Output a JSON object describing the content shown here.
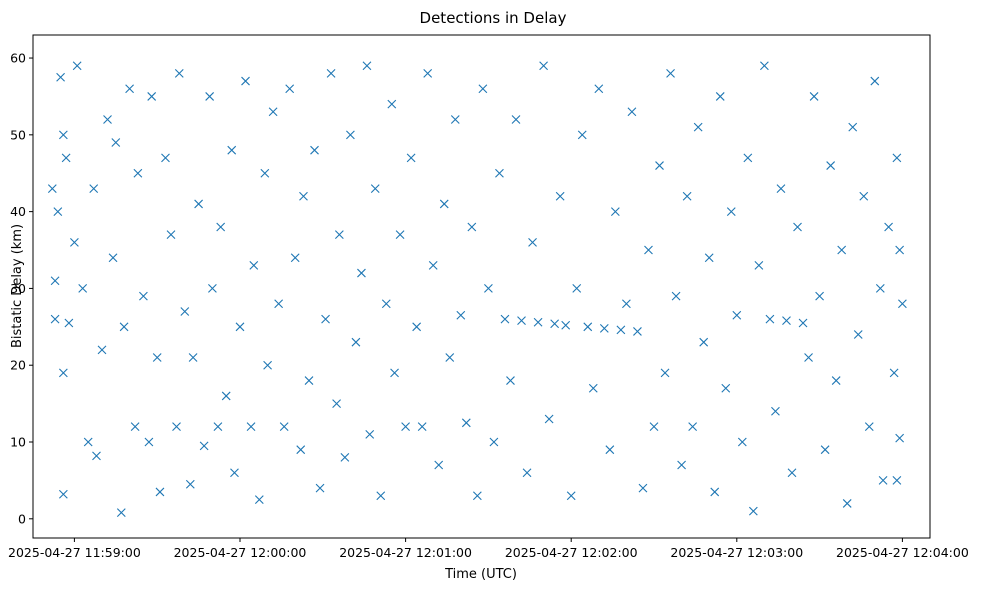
{
  "chart_data": {
    "type": "scatter",
    "title": "Detections in Delay",
    "xlabel": "Time (UTC)",
    "ylabel": "Bistatic Delay (km)",
    "x_ticks": [
      "2025-04-27 11:59:00",
      "2025-04-27 12:00:00",
      "2025-04-27 12:01:00",
      "2025-04-27 12:02:00",
      "2025-04-27 12:03:00",
      "2025-04-27 12:04:00"
    ],
    "y_ticks": [
      "0",
      "10",
      "20",
      "30",
      "40",
      "50",
      "60"
    ],
    "xlim": [
      "2025-04-27 11:58:45",
      "2025-04-27 12:04:10"
    ],
    "ylim": [
      -2.5,
      63
    ],
    "marker": "x",
    "color": "#1f77b4",
    "grid": false,
    "legend": "none",
    "series": [
      {
        "points": [
          [
            "11:58:52",
            43
          ],
          [
            "11:58:53",
            31
          ],
          [
            "11:58:53",
            26
          ],
          [
            "11:58:54",
            40
          ],
          [
            "11:58:55",
            57.5
          ],
          [
            "11:58:56",
            50
          ],
          [
            "11:58:57",
            47
          ],
          [
            "11:58:56",
            19
          ],
          [
            "11:58:56",
            3.2
          ],
          [
            "11:58:58",
            25.5
          ],
          [
            "11:59:00",
            36
          ],
          [
            "11:59:01",
            59
          ],
          [
            "11:59:03",
            30
          ],
          [
            "11:59:05",
            10
          ],
          [
            "11:59:07",
            43
          ],
          [
            "11:59:08",
            8.2
          ],
          [
            "11:59:10",
            22
          ],
          [
            "11:59:12",
            52
          ],
          [
            "11:59:14",
            34
          ],
          [
            "11:59:15",
            49
          ],
          [
            "11:59:17",
            0.8
          ],
          [
            "11:59:18",
            25
          ],
          [
            "11:59:20",
            56
          ],
          [
            "11:59:22",
            12
          ],
          [
            "11:59:23",
            45
          ],
          [
            "11:59:25",
            29
          ],
          [
            "11:59:27",
            10
          ],
          [
            "11:59:28",
            55
          ],
          [
            "11:59:30",
            21
          ],
          [
            "11:59:31",
            3.5
          ],
          [
            "11:59:33",
            47
          ],
          [
            "11:59:35",
            37
          ],
          [
            "11:59:37",
            12
          ],
          [
            "11:59:38",
            58
          ],
          [
            "11:59:40",
            27
          ],
          [
            "11:59:42",
            4.5
          ],
          [
            "11:59:43",
            21
          ],
          [
            "11:59:45",
            41
          ],
          [
            "11:59:47",
            9.5
          ],
          [
            "11:59:49",
            55
          ],
          [
            "11:59:50",
            30
          ],
          [
            "11:59:52",
            12
          ],
          [
            "11:59:53",
            38
          ],
          [
            "11:59:55",
            16
          ],
          [
            "11:59:57",
            48
          ],
          [
            "11:59:58",
            6
          ],
          [
            "12:00:00",
            25
          ],
          [
            "12:00:02",
            57
          ],
          [
            "12:00:04",
            12
          ],
          [
            "12:00:05",
            33
          ],
          [
            "12:00:07",
            2.5
          ],
          [
            "12:00:09",
            45
          ],
          [
            "12:00:10",
            20
          ],
          [
            "12:00:12",
            53
          ],
          [
            "12:00:14",
            28
          ],
          [
            "12:00:16",
            12
          ],
          [
            "12:00:18",
            56
          ],
          [
            "12:00:20",
            34
          ],
          [
            "12:00:22",
            9
          ],
          [
            "12:00:23",
            42
          ],
          [
            "12:00:25",
            18
          ],
          [
            "12:00:27",
            48
          ],
          [
            "12:00:29",
            4
          ],
          [
            "12:00:31",
            26
          ],
          [
            "12:00:33",
            58
          ],
          [
            "12:00:35",
            15
          ],
          [
            "12:00:36",
            37
          ],
          [
            "12:00:38",
            8
          ],
          [
            "12:00:40",
            50
          ],
          [
            "12:00:42",
            23
          ],
          [
            "12:00:44",
            32
          ],
          [
            "12:00:46",
            59
          ],
          [
            "12:00:47",
            11
          ],
          [
            "12:00:49",
            43
          ],
          [
            "12:00:51",
            3
          ],
          [
            "12:00:53",
            28
          ],
          [
            "12:00:55",
            54
          ],
          [
            "12:00:56",
            19
          ],
          [
            "12:00:58",
            37
          ],
          [
            "12:01:00",
            12
          ],
          [
            "12:01:02",
            47
          ],
          [
            "12:01:04",
            25
          ],
          [
            "12:01:06",
            12
          ],
          [
            "12:01:08",
            58
          ],
          [
            "12:01:10",
            33
          ],
          [
            "12:01:12",
            7
          ],
          [
            "12:01:14",
            41
          ],
          [
            "12:01:16",
            21
          ],
          [
            "12:01:18",
            52
          ],
          [
            "12:01:20",
            26.5
          ],
          [
            "12:01:22",
            12.5
          ],
          [
            "12:01:24",
            38
          ],
          [
            "12:01:26",
            3
          ],
          [
            "12:01:28",
            56
          ],
          [
            "12:01:30",
            30
          ],
          [
            "12:01:32",
            10
          ],
          [
            "12:01:34",
            45
          ],
          [
            "12:01:36",
            26
          ],
          [
            "12:01:38",
            18
          ],
          [
            "12:01:40",
            52
          ],
          [
            "12:01:42",
            25.8
          ],
          [
            "12:01:44",
            6
          ],
          [
            "12:01:46",
            36
          ],
          [
            "12:01:48",
            25.6
          ],
          [
            "12:01:50",
            59
          ],
          [
            "12:01:52",
            13
          ],
          [
            "12:01:54",
            25.4
          ],
          [
            "12:01:56",
            42
          ],
          [
            "12:01:58",
            25.2
          ],
          [
            "12:02:00",
            3
          ],
          [
            "12:02:02",
            30
          ],
          [
            "12:02:04",
            50
          ],
          [
            "12:02:06",
            25
          ],
          [
            "12:02:08",
            17
          ],
          [
            "12:02:10",
            56
          ],
          [
            "12:02:12",
            24.8
          ],
          [
            "12:02:14",
            9
          ],
          [
            "12:02:16",
            40
          ],
          [
            "12:02:18",
            24.6
          ],
          [
            "12:02:20",
            28
          ],
          [
            "12:02:22",
            53
          ],
          [
            "12:02:24",
            24.4
          ],
          [
            "12:02:26",
            4
          ],
          [
            "12:02:28",
            35
          ],
          [
            "12:02:30",
            12
          ],
          [
            "12:02:32",
            46
          ],
          [
            "12:02:34",
            19
          ],
          [
            "12:02:36",
            58
          ],
          [
            "12:02:38",
            29
          ],
          [
            "12:02:40",
            7
          ],
          [
            "12:02:42",
            42
          ],
          [
            "12:02:44",
            12
          ],
          [
            "12:02:46",
            51
          ],
          [
            "12:02:48",
            23
          ],
          [
            "12:02:50",
            34
          ],
          [
            "12:02:52",
            3.5
          ],
          [
            "12:02:54",
            55
          ],
          [
            "12:02:56",
            17
          ],
          [
            "12:02:58",
            40
          ],
          [
            "12:03:00",
            26.5
          ],
          [
            "12:03:02",
            10
          ],
          [
            "12:03:04",
            47
          ],
          [
            "12:03:06",
            1
          ],
          [
            "12:03:08",
            33
          ],
          [
            "12:03:10",
            59
          ],
          [
            "12:03:12",
            26
          ],
          [
            "12:03:14",
            14
          ],
          [
            "12:03:16",
            43
          ],
          [
            "12:03:18",
            25.8
          ],
          [
            "12:03:20",
            6
          ],
          [
            "12:03:22",
            38
          ],
          [
            "12:03:24",
            25.5
          ],
          [
            "12:03:26",
            21
          ],
          [
            "12:03:28",
            55
          ],
          [
            "12:03:30",
            29
          ],
          [
            "12:03:32",
            9
          ],
          [
            "12:03:34",
            46
          ],
          [
            "12:03:36",
            18
          ],
          [
            "12:03:38",
            35
          ],
          [
            "12:03:40",
            2
          ],
          [
            "12:03:42",
            51
          ],
          [
            "12:03:44",
            24
          ],
          [
            "12:03:46",
            42
          ],
          [
            "12:03:48",
            12
          ],
          [
            "12:03:50",
            57
          ],
          [
            "12:03:52",
            30
          ],
          [
            "12:03:53",
            5
          ],
          [
            "12:03:55",
            38
          ],
          [
            "12:03:57",
            19
          ],
          [
            "12:03:58",
            47
          ],
          [
            "12:03:59",
            10.5
          ],
          [
            "12:04:00",
            28
          ],
          [
            "12:03:59",
            35
          ],
          [
            "12:03:58",
            5
          ]
        ]
      }
    ]
  }
}
